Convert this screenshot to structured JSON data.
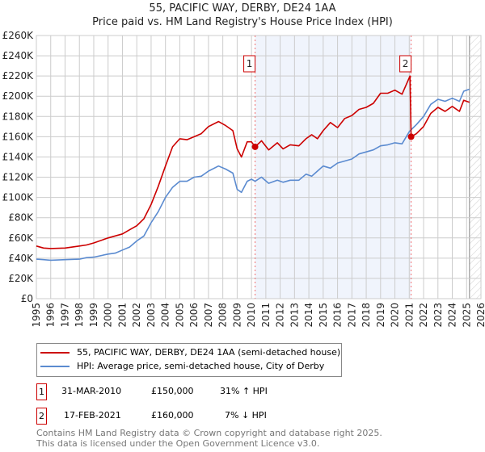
{
  "chart_data": {
    "type": "line",
    "title": "55, PACIFIC WAY, DERBY, DE24 1AA",
    "subtitle": "Price paid vs. HM Land Registry's House Price Index (HPI)",
    "xlim": [
      1995,
      2026
    ],
    "ylim": [
      0,
      260000
    ],
    "x_ticks": [
      1995,
      1996,
      1997,
      1998,
      1999,
      2000,
      2001,
      2002,
      2003,
      2004,
      2005,
      2006,
      2007,
      2008,
      2009,
      2010,
      2011,
      2012,
      2013,
      2014,
      2015,
      2016,
      2017,
      2018,
      2019,
      2020,
      2021,
      2022,
      2023,
      2024,
      2025,
      2026
    ],
    "y_ticks": [
      0,
      20000,
      40000,
      60000,
      80000,
      100000,
      120000,
      140000,
      160000,
      180000,
      200000,
      220000,
      240000,
      260000
    ],
    "y_tick_labels": [
      "£0",
      "£20K",
      "£40K",
      "£60K",
      "£80K",
      "£100K",
      "£120K",
      "£140K",
      "£160K",
      "£180K",
      "£200K",
      "£220K",
      "£240K",
      "£260K"
    ],
    "grid": true,
    "series": [
      {
        "name": "55, PACIFIC WAY, DERBY, DE24 1AA (semi-detached house)",
        "color": "#cc0000",
        "points": [
          [
            1995,
            52000
          ],
          [
            1995.5,
            50000
          ],
          [
            1996,
            49500
          ],
          [
            1997,
            50000
          ],
          [
            1998,
            52000
          ],
          [
            1998.5,
            53000
          ],
          [
            1999,
            55000
          ],
          [
            2000,
            60000
          ],
          [
            2000.5,
            62000
          ],
          [
            2001,
            64000
          ],
          [
            2001.5,
            68000
          ],
          [
            2002,
            72000
          ],
          [
            2002.5,
            79000
          ],
          [
            2003,
            93000
          ],
          [
            2003.5,
            111000
          ],
          [
            2004,
            131000
          ],
          [
            2004.5,
            150000
          ],
          [
            2005,
            158000
          ],
          [
            2005.5,
            157000
          ],
          [
            2006,
            160000
          ],
          [
            2006.5,
            163000
          ],
          [
            2007,
            170000
          ],
          [
            2007.7,
            175000
          ],
          [
            2008.2,
            171000
          ],
          [
            2008.7,
            166000
          ],
          [
            2009,
            148000
          ],
          [
            2009.3,
            140000
          ],
          [
            2009.7,
            155000
          ],
          [
            2010,
            155000
          ],
          [
            2010.25,
            150000
          ],
          [
            2010.7,
            156000
          ],
          [
            2011.2,
            147000
          ],
          [
            2011.8,
            154000
          ],
          [
            2012.2,
            148000
          ],
          [
            2012.7,
            152000
          ],
          [
            2013.3,
            151000
          ],
          [
            2013.8,
            158000
          ],
          [
            2014.2,
            162000
          ],
          [
            2014.6,
            158000
          ],
          [
            2015,
            166000
          ],
          [
            2015.5,
            174000
          ],
          [
            2016,
            169000
          ],
          [
            2016.5,
            178000
          ],
          [
            2017,
            181000
          ],
          [
            2017.5,
            187000
          ],
          [
            2018,
            189000
          ],
          [
            2018.5,
            193000
          ],
          [
            2019,
            203000
          ],
          [
            2019.5,
            203000
          ],
          [
            2020,
            206000
          ],
          [
            2020.5,
            202000
          ],
          [
            2021.05,
            220000
          ],
          [
            2021.13,
            160000
          ],
          [
            2021.5,
            163000
          ],
          [
            2022,
            170000
          ],
          [
            2022.5,
            183000
          ],
          [
            2023,
            189000
          ],
          [
            2023.5,
            185000
          ],
          [
            2024,
            190000
          ],
          [
            2024.5,
            185000
          ],
          [
            2024.8,
            196000
          ],
          [
            2025.2,
            194000
          ]
        ]
      },
      {
        "name": "HPI: Average price, semi-detached house, City of Derby",
        "color": "#5b8bd0",
        "points": [
          [
            1995,
            39000
          ],
          [
            1995.5,
            38500
          ],
          [
            1996,
            38000
          ],
          [
            1997,
            38500
          ],
          [
            1998,
            39000
          ],
          [
            1998.5,
            40500
          ],
          [
            1999,
            41000
          ],
          [
            2000,
            44000
          ],
          [
            2000.5,
            45000
          ],
          [
            2001,
            48000
          ],
          [
            2001.5,
            51000
          ],
          [
            2002,
            57000
          ],
          [
            2002.5,
            62000
          ],
          [
            2003,
            75000
          ],
          [
            2003.5,
            86000
          ],
          [
            2004,
            100000
          ],
          [
            2004.5,
            110000
          ],
          [
            2005,
            116000
          ],
          [
            2005.5,
            116000
          ],
          [
            2006,
            120000
          ],
          [
            2006.5,
            121000
          ],
          [
            2007,
            126000
          ],
          [
            2007.7,
            131000
          ],
          [
            2008.2,
            128000
          ],
          [
            2008.7,
            124000
          ],
          [
            2009,
            108000
          ],
          [
            2009.3,
            105000
          ],
          [
            2009.7,
            116000
          ],
          [
            2010,
            118000
          ],
          [
            2010.25,
            116000
          ],
          [
            2010.7,
            120000
          ],
          [
            2011.2,
            114000
          ],
          [
            2011.8,
            117000
          ],
          [
            2012.2,
            115000
          ],
          [
            2012.7,
            117000
          ],
          [
            2013.3,
            117000
          ],
          [
            2013.8,
            123000
          ],
          [
            2014.2,
            121000
          ],
          [
            2014.6,
            126000
          ],
          [
            2015,
            131000
          ],
          [
            2015.5,
            129000
          ],
          [
            2016,
            134000
          ],
          [
            2016.5,
            136000
          ],
          [
            2017,
            138000
          ],
          [
            2017.5,
            143000
          ],
          [
            2018,
            145000
          ],
          [
            2018.5,
            147000
          ],
          [
            2019,
            151000
          ],
          [
            2019.5,
            152000
          ],
          [
            2020,
            154000
          ],
          [
            2020.5,
            153000
          ],
          [
            2021,
            165000
          ],
          [
            2021.5,
            172000
          ],
          [
            2022,
            180000
          ],
          [
            2022.5,
            192000
          ],
          [
            2023,
            197000
          ],
          [
            2023.5,
            195000
          ],
          [
            2024,
            198000
          ],
          [
            2024.5,
            195000
          ],
          [
            2024.8,
            205000
          ],
          [
            2025.2,
            207000
          ]
        ]
      }
    ],
    "sales": [
      {
        "label": "1",
        "year": 2010.25,
        "price": 150000
      },
      {
        "label": "2",
        "year": 2021.13,
        "price": 160000
      }
    ],
    "shaded_range": [
      2010.25,
      2021.13
    ],
    "forecast_hatch_from": 2025.2,
    "legend_placement": "below"
  },
  "legend": {
    "property": "55, PACIFIC WAY, DERBY, DE24 1AA (semi-detached house)",
    "hpi": "HPI: Average price, semi-detached house, City of Derby"
  },
  "transactions": [
    {
      "num": "1",
      "date": "31-MAR-2010",
      "price": "£150,000",
      "hpi": "31% ↑ HPI"
    },
    {
      "num": "2",
      "date": "17-FEB-2021",
      "price": "£160,000",
      "hpi": "7% ↓ HPI"
    }
  ],
  "footer": {
    "line1": "Contains HM Land Registry data © Crown copyright and database right 2025.",
    "line2": "This data is licensed under the Open Government Licence v3.0."
  }
}
